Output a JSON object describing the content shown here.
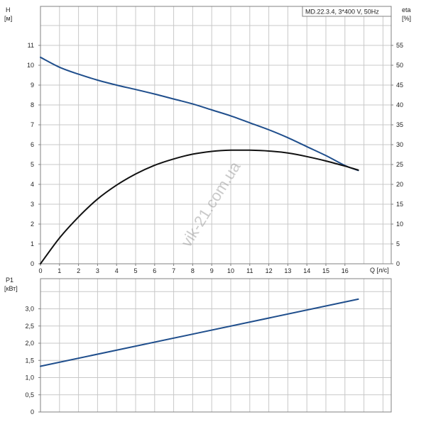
{
  "chart_data": [
    {
      "type": "line",
      "subtitle": "MD.22.3.4, 3*400 V, 50Hz",
      "xlabel": "Q [л/с]",
      "ylabel": "H",
      "ylabel_unit": "[м]",
      "y2label": "eta",
      "y2label_unit": "[%]",
      "xlim": [
        0,
        18
      ],
      "x_ticks": [
        0,
        1,
        2,
        3,
        4,
        5,
        6,
        7,
        8,
        9,
        10,
        11,
        12,
        13,
        14,
        15,
        16
      ],
      "ylim": [
        0,
        12
      ],
      "y_ticks": [
        0,
        1,
        2,
        3,
        4,
        5,
        6,
        7,
        8,
        9,
        10,
        11
      ],
      "y2lim": [
        0,
        60
      ],
      "y2_ticks": [
        0,
        5,
        10,
        15,
        20,
        25,
        30,
        35,
        40,
        45,
        50,
        55
      ],
      "grid": true,
      "series": [
        {
          "axis": "left",
          "color": "#1f4e8c",
          "x": [
            0,
            1,
            2,
            3,
            4,
            5,
            6,
            7,
            8,
            9,
            10,
            11,
            12,
            13,
            14,
            15,
            16,
            16.7
          ],
          "y": [
            10.4,
            9.9,
            9.55,
            9.25,
            9.0,
            8.78,
            8.55,
            8.3,
            8.05,
            7.75,
            7.45,
            7.1,
            6.75,
            6.35,
            5.9,
            5.45,
            4.95,
            4.7
          ]
        },
        {
          "axis": "right",
          "color": "#111111",
          "x": [
            0,
            1,
            2,
            3,
            4,
            5,
            6,
            7,
            8,
            9,
            10,
            11,
            12,
            13,
            14,
            15,
            16,
            16.7
          ],
          "y": [
            0,
            6.5,
            11.8,
            16.3,
            19.8,
            22.6,
            24.8,
            26.4,
            27.6,
            28.3,
            28.6,
            28.6,
            28.4,
            27.9,
            27.0,
            25.9,
            24.6,
            23.6
          ]
        }
      ]
    },
    {
      "type": "line",
      "ylabel": "P1",
      "ylabel_unit": "[кВт]",
      "xlim": [
        0,
        18
      ],
      "ylim": [
        0,
        3.5
      ],
      "y_ticks": [
        0,
        0.5,
        1.0,
        1.5,
        2.0,
        2.5,
        3.0
      ],
      "y_tick_labels": [
        "0",
        "0,5",
        "1,0",
        "1,5",
        "2,0",
        "2,5",
        "3,0"
      ],
      "grid": true,
      "series": [
        {
          "color": "#1f4e8c",
          "x": [
            0,
            16.7
          ],
          "y": [
            1.33,
            3.28
          ]
        }
      ]
    }
  ],
  "watermark": "vik-21.com.ua"
}
